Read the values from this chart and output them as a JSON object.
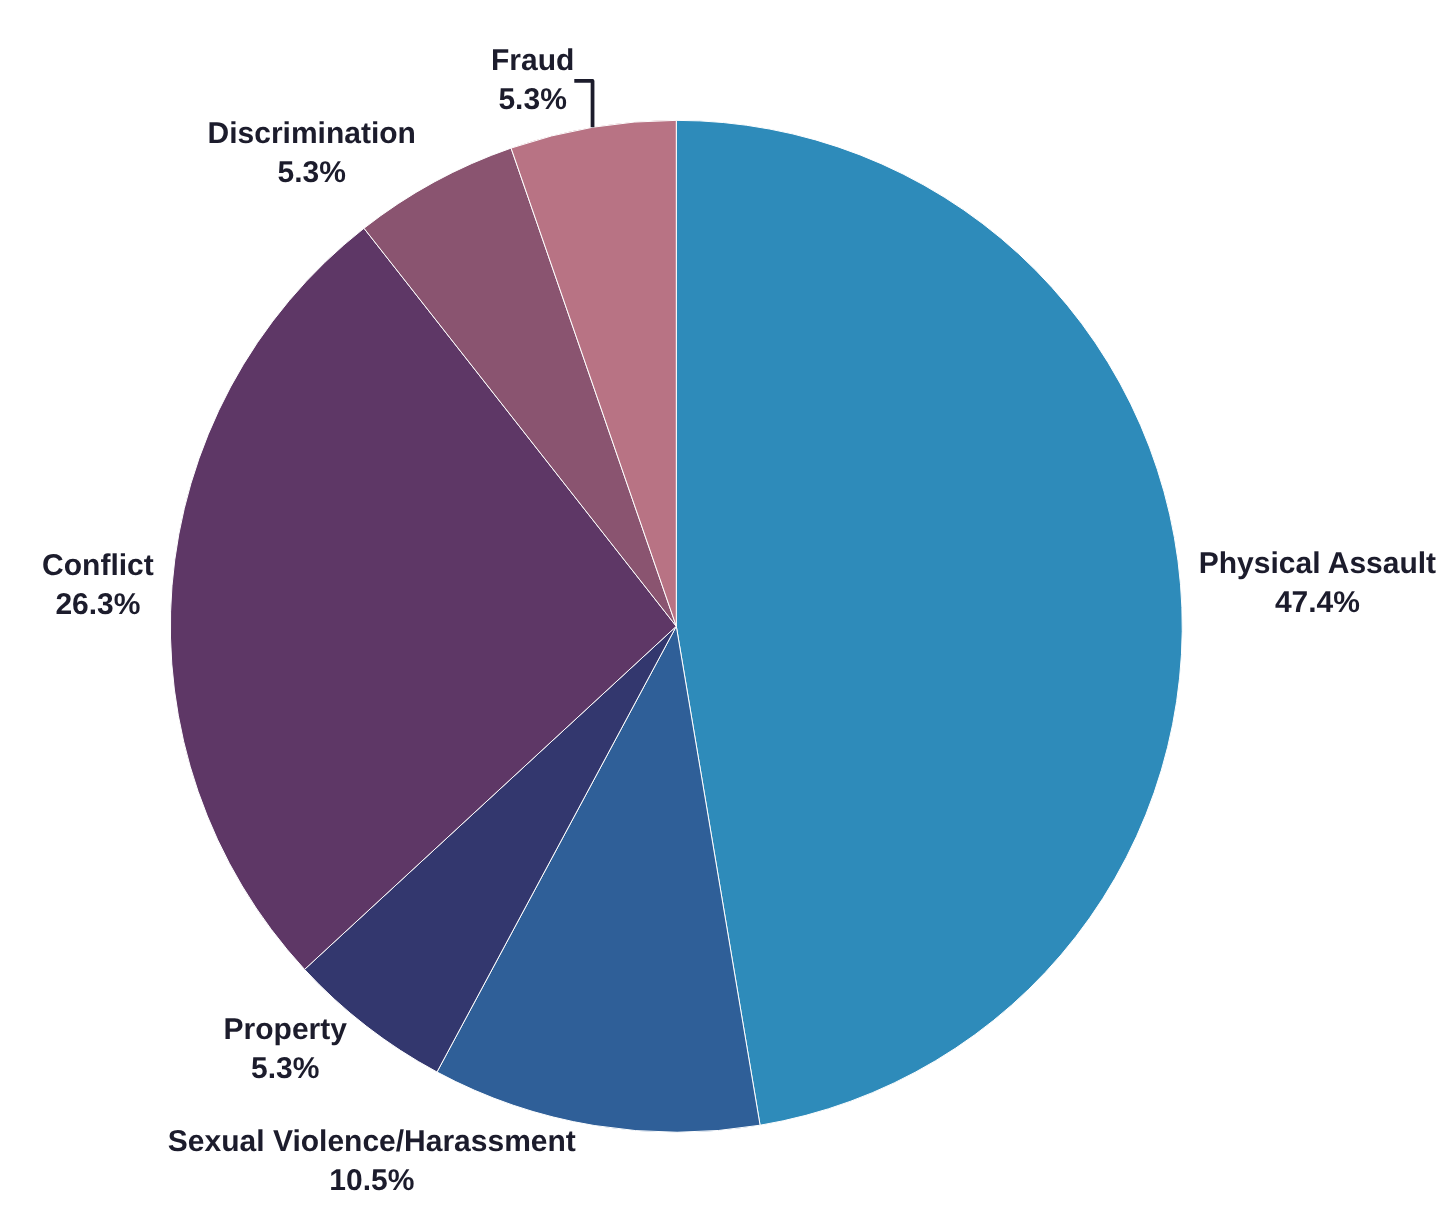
{
  "chart_data": {
    "type": "pie",
    "categories": [
      "Physical Assault",
      "Sexual Violence/Harassment",
      "Property",
      "Conflict",
      "Discrimination",
      "Fraud"
    ],
    "values": [
      47.4,
      10.5,
      5.3,
      26.3,
      5.3,
      5.3
    ],
    "value_labels": [
      "47.4%",
      "10.5%",
      "5.3%",
      "26.3%",
      "5.3%",
      "5.3%"
    ],
    "colors": [
      "#2e8bba",
      "#2f5f98",
      "#33376e",
      "#5e3766",
      "#8a5470",
      "#b87384"
    ],
    "legend": false
  }
}
